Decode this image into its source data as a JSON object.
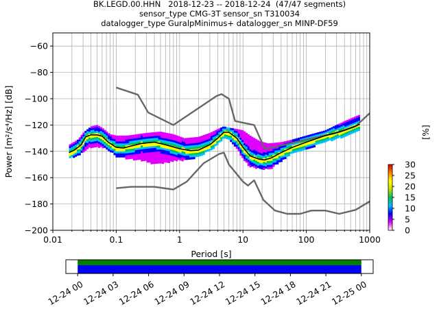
{
  "title": {
    "line1": "BK.LEGD.00.HHN   2018-12-23 -- 2018-12-24  (47/47 segments)",
    "line2": "sensor_type CMG-3T sensor_sn T310034",
    "line3": "datalogger_type GuralpMinimus+ datalogger_sn MINP-DF59"
  },
  "chart_data": {
    "type": "heatmap",
    "subtype": "probabilistic power spectral density",
    "xlabel": "Period [s]",
    "ylabel": "Power [m²/s⁴/Hz] [dB]",
    "xscale": "log",
    "xlim": [
      0.01,
      1000
    ],
    "ylim": [
      -200,
      -50
    ],
    "grid": true,
    "x_ticks": [
      {
        "value": 0.01,
        "label": "0.01"
      },
      {
        "value": 0.1,
        "label": "0.1"
      },
      {
        "value": 1,
        "label": "1"
      },
      {
        "value": 10,
        "label": "10"
      },
      {
        "value": 100,
        "label": "100"
      },
      {
        "value": 1000,
        "label": "1000"
      }
    ],
    "y_ticks": [
      {
        "value": -60,
        "label": "−60"
      },
      {
        "value": -80,
        "label": "−80"
      },
      {
        "value": -100,
        "label": "−100"
      },
      {
        "value": -120,
        "label": "−120"
      },
      {
        "value": -140,
        "label": "−140"
      },
      {
        "value": -160,
        "label": "−160"
      },
      {
        "value": -180,
        "label": "−180"
      },
      {
        "value": -200,
        "label": "−200"
      }
    ],
    "noise_model_high": {
      "color": "#666666",
      "points": [
        [
          0.1,
          -91.5
        ],
        [
          0.22,
          -97
        ],
        [
          0.32,
          -110.5
        ],
        [
          0.8,
          -120
        ],
        [
          3.8,
          -98
        ],
        [
          4.6,
          -96.5
        ],
        [
          6.0,
          -100
        ],
        [
          7.5,
          -117
        ],
        [
          15.0,
          -120
        ],
        [
          22,
          -138
        ],
        [
          37,
          -136
        ],
        [
          100,
          -131
        ],
        [
          300,
          -126
        ],
        [
          600,
          -121
        ],
        [
          1000,
          -111
        ]
      ]
    },
    "noise_model_low": {
      "color": "#666666",
      "points": [
        [
          0.1,
          -168
        ],
        [
          0.17,
          -167
        ],
        [
          0.4,
          -167
        ],
        [
          0.8,
          -169
        ],
        [
          1.3,
          -163
        ],
        [
          2.4,
          -149
        ],
        [
          4.2,
          -142
        ],
        [
          5.0,
          -141
        ],
        [
          6.0,
          -150
        ],
        [
          10,
          -163
        ],
        [
          12,
          -166
        ],
        [
          15,
          -162
        ],
        [
          21,
          -177
        ],
        [
          32,
          -185
        ],
        [
          50,
          -187.5
        ],
        [
          80,
          -187.5
        ],
        [
          120,
          -185
        ],
        [
          200,
          -185
        ],
        [
          330,
          -187.5
        ],
        [
          600,
          -184.5
        ],
        [
          1000,
          -178
        ]
      ]
    },
    "mode_line": {
      "color": "#000000",
      "points": [
        [
          0.018,
          -141
        ],
        [
          0.022,
          -139
        ],
        [
          0.028,
          -135
        ],
        [
          0.033,
          -129
        ],
        [
          0.04,
          -127.5
        ],
        [
          0.05,
          -127.5
        ],
        [
          0.06,
          -128.5
        ],
        [
          0.075,
          -133
        ],
        [
          0.1,
          -137
        ],
        [
          0.13,
          -137.5
        ],
        [
          0.17,
          -136
        ],
        [
          0.25,
          -134
        ],
        [
          0.4,
          -133
        ],
        [
          0.6,
          -135
        ],
        [
          1.0,
          -138
        ],
        [
          1.5,
          -139.5
        ],
        [
          2.0,
          -139
        ],
        [
          3.0,
          -135
        ],
        [
          4.0,
          -130
        ],
        [
          5.0,
          -125.5
        ],
        [
          6.0,
          -125.5
        ],
        [
          8.0,
          -130
        ],
        [
          10,
          -137
        ],
        [
          13,
          -143.5
        ],
        [
          18,
          -146
        ],
        [
          22,
          -146.5
        ],
        [
          28,
          -145
        ],
        [
          40,
          -141
        ],
        [
          60,
          -137
        ],
        [
          100,
          -133
        ],
        [
          200,
          -128
        ],
        [
          400,
          -124
        ],
        [
          700,
          -119.5
        ]
      ]
    },
    "density_band": {
      "upper": [
        [
          0.018,
          -135
        ],
        [
          0.025,
          -131
        ],
        [
          0.03,
          -126
        ],
        [
          0.04,
          -121
        ],
        [
          0.05,
          -120
        ],
        [
          0.06,
          -122
        ],
        [
          0.08,
          -127
        ],
        [
          0.1,
          -128
        ],
        [
          0.15,
          -128
        ],
        [
          0.3,
          -126
        ],
        [
          0.5,
          -125
        ],
        [
          0.8,
          -127
        ],
        [
          1.2,
          -130
        ],
        [
          2.0,
          -129
        ],
        [
          3.0,
          -126
        ],
        [
          4.0,
          -123
        ],
        [
          5.0,
          -121
        ],
        [
          6.0,
          -122
        ],
        [
          8.0,
          -123
        ],
        [
          10,
          -124
        ],
        [
          13,
          -128
        ],
        [
          18,
          -132
        ],
        [
          25,
          -134
        ],
        [
          40,
          -133
        ],
        [
          60,
          -131
        ],
        [
          100,
          -128
        ],
        [
          200,
          -124
        ],
        [
          400,
          -117
        ],
        [
          700,
          -112
        ]
      ],
      "lower": [
        [
          0.018,
          -144
        ],
        [
          0.022,
          -144
        ],
        [
          0.03,
          -140
        ],
        [
          0.04,
          -136
        ],
        [
          0.06,
          -136
        ],
        [
          0.08,
          -139
        ],
        [
          0.1,
          -143
        ],
        [
          0.15,
          -145
        ],
        [
          0.25,
          -146
        ],
        [
          0.4,
          -149
        ],
        [
          0.6,
          -148
        ],
        [
          1.0,
          -146
        ],
        [
          1.5,
          -146
        ],
        [
          2.0,
          -143
        ],
        [
          3.0,
          -139
        ],
        [
          4.0,
          -134
        ],
        [
          5.0,
          -129
        ],
        [
          6.0,
          -130
        ],
        [
          8.0,
          -137
        ],
        [
          10,
          -145
        ],
        [
          13,
          -151
        ],
        [
          20,
          -153
        ],
        [
          28,
          -152
        ],
        [
          40,
          -147
        ],
        [
          60,
          -141
        ],
        [
          100,
          -138
        ],
        [
          200,
          -132
        ],
        [
          400,
          -128
        ],
        [
          700,
          -124
        ]
      ]
    },
    "colorbar": {
      "label": "[%]",
      "range": [
        0,
        30
      ],
      "ticks": [
        {
          "value": 0,
          "label": "0"
        },
        {
          "value": 5,
          "label": "5"
        },
        {
          "value": 10,
          "label": "10"
        },
        {
          "value": 15,
          "label": "15"
        },
        {
          "value": 20,
          "label": "20"
        },
        {
          "value": 25,
          "label": "25"
        },
        {
          "value": 30,
          "label": "30"
        }
      ],
      "colors": [
        "#ffffff",
        "#e000ff",
        "#0000ff",
        "#00c0ff",
        "#00c060",
        "#c0e000",
        "#ffff00",
        "#ff8000",
        "#d00000"
      ]
    },
    "coverage": {
      "range": [
        "2018-12-23T23:00",
        "2018-12-25T01:00"
      ],
      "data_span": [
        "2018-12-24T00:00",
        "2018-12-25T00:00"
      ],
      "bar_colors": {
        "data": "#0000ff",
        "gaps_ok": "#008000"
      },
      "tick_labels": [
        "12-24 00",
        "12-24 03",
        "12-24 06",
        "12-24 09",
        "12-24 12",
        "12-24 15",
        "12-24 18",
        "12-24 21",
        "12-25 00"
      ]
    }
  }
}
